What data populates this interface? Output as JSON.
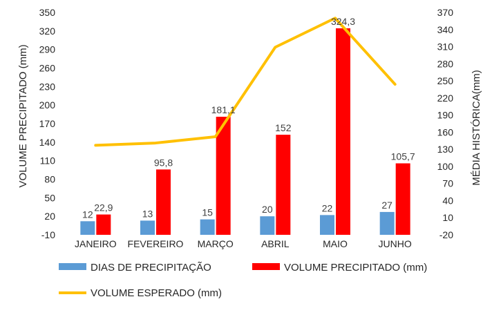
{
  "chart_data": {
    "type": "bar",
    "categories": [
      "JANEIRO",
      "FEVEREIRO",
      "MARÇO",
      "ABRIL",
      "MAIO",
      "JUNHO"
    ],
    "series": [
      {
        "name": "DIAS DE PRECIPITAÇÃO",
        "kind": "bar",
        "axis": "left",
        "color": "#5B9BD5",
        "values": [
          12,
          13,
          15,
          20,
          22,
          27
        ],
        "labels": [
          "12",
          "13",
          "15",
          "20",
          "22",
          "27"
        ]
      },
      {
        "name": "VOLUME PRECIPITADO (mm)",
        "kind": "bar",
        "axis": "left",
        "color": "#FF0000",
        "values": [
          22.9,
          95.8,
          181.1,
          152,
          324.3,
          105.7
        ],
        "labels": [
          "22,9",
          "95,8",
          "181,1",
          "152",
          "324,3",
          "105,7"
        ]
      },
      {
        "name": "VOLUME ESPERADO (mm)",
        "kind": "line",
        "axis": "right",
        "color": "#FFC000",
        "values": [
          137,
          141,
          152,
          309,
          360,
          244
        ]
      }
    ],
    "ylabel": "VOLUME PRECIPITADO (mm)",
    "y2label": "MÉDIA HISTÓRICA(mm)",
    "ylim": [
      -10,
      350
    ],
    "y2lim": [
      -20,
      370
    ],
    "yticks": [
      "350",
      "320",
      "290",
      "260",
      "230",
      "200",
      "170",
      "140",
      "110",
      "80",
      "50",
      "20",
      "-10"
    ],
    "y2ticks": [
      "370",
      "340",
      "310",
      "280",
      "250",
      "220",
      "190",
      "160",
      "130",
      "100",
      "70",
      "40",
      "10",
      "-20"
    ],
    "grid": false,
    "legend_position": "bottom"
  }
}
